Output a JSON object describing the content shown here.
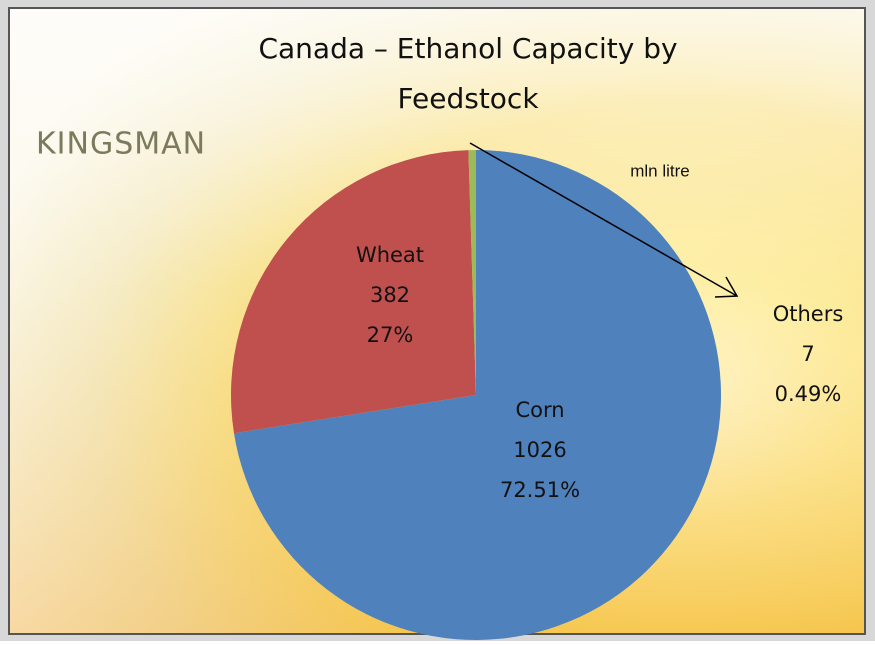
{
  "chart_data": {
    "type": "pie",
    "title": "Canada – Ethanol Capacity by Feedstock",
    "brand": "KINGSMAN",
    "unit_note": "mln litre",
    "categories": [
      "Corn",
      "Wheat",
      "Others"
    ],
    "values": [
      1026,
      382,
      7
    ],
    "percent_labels": [
      "72.51%",
      "27%",
      "0.49%"
    ],
    "colors": [
      "#4f81bd",
      "#c0504d",
      "#9bbb59"
    ]
  }
}
